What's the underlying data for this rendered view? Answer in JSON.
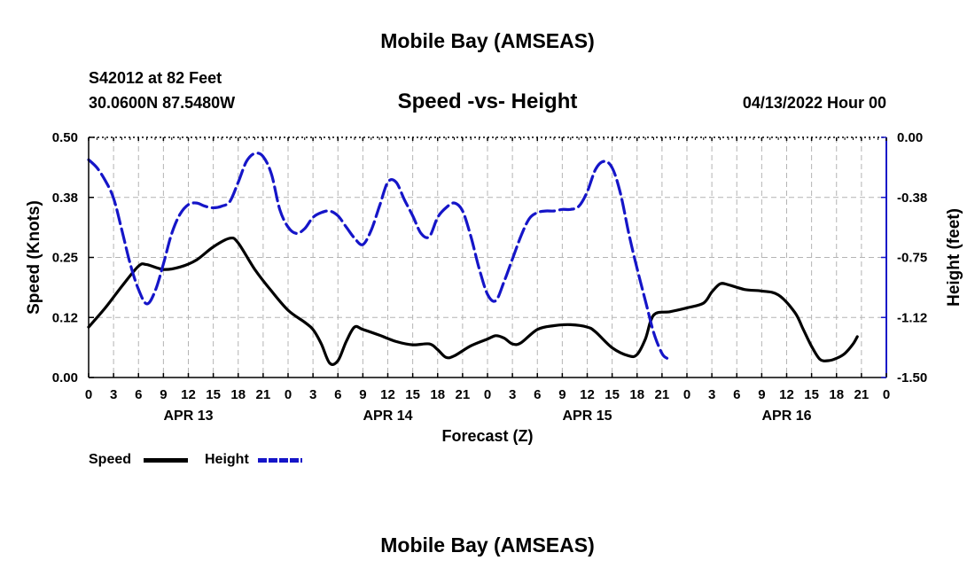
{
  "page": {
    "title_top": "Mobile Bay (AMSEAS)",
    "title_bottom": "Mobile Bay (AMSEAS)",
    "station": "S42012 at 82 Feet",
    "coords": "30.0600N  87.5480W",
    "datetime": "04/13/2022 Hour 00"
  },
  "colors": {
    "speed": "#000000",
    "height": "#1515c8",
    "grid": "#b4b4b4"
  },
  "chart_data": {
    "type": "line",
    "title": "Speed -vs- Height",
    "xlabel": "Forecast (Z)",
    "ylabel_left": "Speed (Knots)",
    "ylabel_right": "Height (feet)",
    "x_range": [
      0,
      96
    ],
    "ylim_left": [
      0,
      0.5
    ],
    "ylim_right": [
      -1.5,
      0
    ],
    "x_ticks": [
      0,
      3,
      6,
      9,
      12,
      15,
      18,
      21,
      24,
      27,
      30,
      33,
      36,
      39,
      42,
      45,
      48,
      51,
      54,
      57,
      60,
      63,
      66,
      69,
      72,
      75,
      78,
      81,
      84,
      87,
      90,
      93,
      96
    ],
    "x_tick_labels": [
      "0",
      "3",
      "6",
      "9",
      "12",
      "15",
      "18",
      "21",
      "0",
      "3",
      "6",
      "9",
      "12",
      "15",
      "18",
      "21",
      "0",
      "3",
      "6",
      "9",
      "12",
      "15",
      "18",
      "21",
      "0",
      "3",
      "6",
      "9",
      "12",
      "15",
      "18",
      "21",
      "0"
    ],
    "y_ticks_left": [
      0,
      0.125,
      0.25,
      0.375,
      0.5
    ],
    "y_tick_labels_left": [
      "0.00",
      "0.12",
      "0.25",
      "0.38",
      "0.50"
    ],
    "y_ticks_right": [
      -1.5,
      -1.125,
      -0.75,
      -0.375,
      0
    ],
    "y_tick_labels_right": [
      "-1.50",
      "-1.12",
      "-0.75",
      "-0.38",
      "0.00"
    ],
    "day_labels": [
      {
        "label": "APR 13",
        "x": 12
      },
      {
        "label": "APR 14",
        "x": 36
      },
      {
        "label": "APR 15",
        "x": 60
      },
      {
        "label": "APR 16",
        "x": 84
      }
    ],
    "grid": true,
    "legend": [
      {
        "label": "Speed",
        "series": "speed"
      },
      {
        "label": "Height",
        "series": "height"
      }
    ],
    "series": [
      {
        "name": "Speed",
        "key": "speed",
        "axis": "left",
        "style": "solid",
        "points": [
          [
            0,
            0.105
          ],
          [
            2,
            0.145
          ],
          [
            4,
            0.19
          ],
          [
            6,
            0.232
          ],
          [
            7,
            0.235
          ],
          [
            9,
            0.225
          ],
          [
            11,
            0.23
          ],
          [
            13,
            0.245
          ],
          [
            15,
            0.272
          ],
          [
            17,
            0.29
          ],
          [
            18,
            0.28
          ],
          [
            20,
            0.225
          ],
          [
            22,
            0.18
          ],
          [
            24,
            0.14
          ],
          [
            26,
            0.115
          ],
          [
            27,
            0.1
          ],
          [
            28,
            0.07
          ],
          [
            29,
            0.03
          ],
          [
            30,
            0.035
          ],
          [
            31,
            0.075
          ],
          [
            32,
            0.105
          ],
          [
            33,
            0.1
          ],
          [
            35,
            0.088
          ],
          [
            37,
            0.075
          ],
          [
            39,
            0.068
          ],
          [
            41,
            0.07
          ],
          [
            42,
            0.058
          ],
          [
            43,
            0.042
          ],
          [
            44,
            0.045
          ],
          [
            46,
            0.066
          ],
          [
            48,
            0.08
          ],
          [
            49,
            0.087
          ],
          [
            50,
            0.082
          ],
          [
            51,
            0.07
          ],
          [
            52,
            0.072
          ],
          [
            54,
            0.1
          ],
          [
            56,
            0.108
          ],
          [
            58,
            0.11
          ],
          [
            60,
            0.105
          ],
          [
            61,
            0.095
          ],
          [
            63,
            0.062
          ],
          [
            65,
            0.045
          ],
          [
            66,
            0.048
          ],
          [
            67,
            0.08
          ],
          [
            68,
            0.13
          ],
          [
            70,
            0.137
          ],
          [
            72,
            0.145
          ],
          [
            74,
            0.155
          ],
          [
            75,
            0.178
          ],
          [
            76,
            0.195
          ],
          [
            77,
            0.193
          ],
          [
            79,
            0.183
          ],
          [
            81,
            0.18
          ],
          [
            83,
            0.172
          ],
          [
            85,
            0.135
          ],
          [
            86,
            0.1
          ],
          [
            87,
            0.065
          ],
          [
            88,
            0.038
          ],
          [
            89,
            0.035
          ],
          [
            90,
            0.04
          ],
          [
            91,
            0.05
          ],
          [
            92,
            0.07
          ],
          [
            92.5,
            0.085
          ]
        ]
      },
      {
        "name": "Height",
        "key": "height",
        "axis": "right",
        "style": "dashed",
        "points": [
          [
            0,
            -0.14
          ],
          [
            1,
            -0.19
          ],
          [
            2,
            -0.27
          ],
          [
            3,
            -0.38
          ],
          [
            4,
            -0.58
          ],
          [
            5,
            -0.79
          ],
          [
            6,
            -0.95
          ],
          [
            7,
            -1.04
          ],
          [
            8,
            -0.96
          ],
          [
            9,
            -0.79
          ],
          [
            10,
            -0.6
          ],
          [
            11,
            -0.48
          ],
          [
            12,
            -0.42
          ],
          [
            13,
            -0.41
          ],
          [
            14,
            -0.43
          ],
          [
            15,
            -0.44
          ],
          [
            16,
            -0.43
          ],
          [
            17,
            -0.4
          ],
          [
            18,
            -0.28
          ],
          [
            19,
            -0.15
          ],
          [
            20,
            -0.1
          ],
          [
            21,
            -0.12
          ],
          [
            22,
            -0.23
          ],
          [
            23,
            -0.45
          ],
          [
            24,
            -0.56
          ],
          [
            25,
            -0.6
          ],
          [
            26,
            -0.57
          ],
          [
            27,
            -0.5
          ],
          [
            28,
            -0.47
          ],
          [
            29,
            -0.46
          ],
          [
            30,
            -0.49
          ],
          [
            31,
            -0.56
          ],
          [
            32,
            -0.63
          ],
          [
            33,
            -0.67
          ],
          [
            34,
            -0.58
          ],
          [
            35,
            -0.43
          ],
          [
            36,
            -0.28
          ],
          [
            37,
            -0.28
          ],
          [
            38,
            -0.39
          ],
          [
            39,
            -0.49
          ],
          [
            40,
            -0.6
          ],
          [
            41,
            -0.62
          ],
          [
            42,
            -0.5
          ],
          [
            43,
            -0.44
          ],
          [
            44,
            -0.41
          ],
          [
            45,
            -0.46
          ],
          [
            46,
            -0.62
          ],
          [
            47,
            -0.82
          ],
          [
            48,
            -0.98
          ],
          [
            49,
            -1.02
          ],
          [
            50,
            -0.9
          ],
          [
            51,
            -0.76
          ],
          [
            52,
            -0.62
          ],
          [
            53,
            -0.51
          ],
          [
            54,
            -0.47
          ],
          [
            55,
            -0.46
          ],
          [
            56,
            -0.46
          ],
          [
            57,
            -0.45
          ],
          [
            58,
            -0.45
          ],
          [
            59,
            -0.43
          ],
          [
            60,
            -0.34
          ],
          [
            61,
            -0.2
          ],
          [
            62,
            -0.15
          ],
          [
            63,
            -0.19
          ],
          [
            64,
            -0.35
          ],
          [
            65,
            -0.6
          ],
          [
            66,
            -0.82
          ],
          [
            67,
            -1.02
          ],
          [
            68,
            -1.22
          ],
          [
            69,
            -1.35
          ],
          [
            69.6,
            -1.38
          ]
        ]
      }
    ]
  }
}
